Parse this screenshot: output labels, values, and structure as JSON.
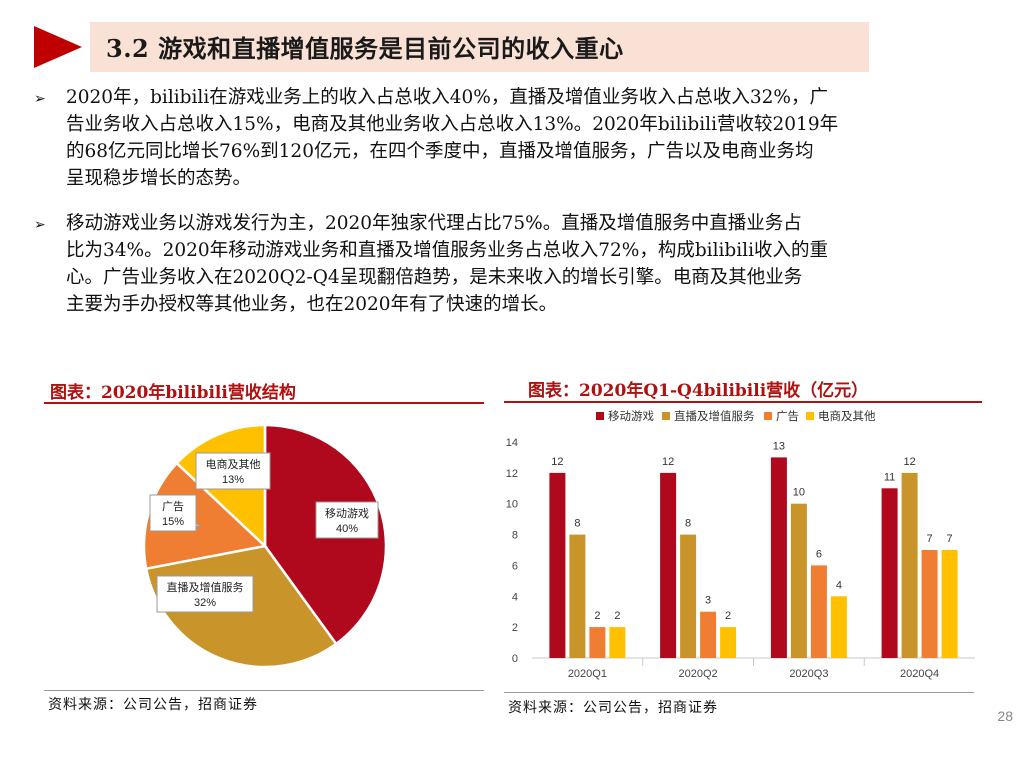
{
  "header": {
    "title": "3.2 游戏和直播增值服务是目前公司的收入重心"
  },
  "paragraphs": [
    {
      "bullet": "➢",
      "lines": [
        "2020年，bilibili在游戏业务上的收入占总收入40%，直播及增值业务收入占总收入32%，广",
        "告业务收入占总收入15%，电商及其他业务收入占总收入13%。2020年bilibili营收较2019年",
        "的68亿元同比增长76%到120亿元，在四个季度中，直播及增值服务，广告以及电商业务均",
        "呈现稳步增长的态势。"
      ]
    },
    {
      "bullet": "➢",
      "lines": [
        "移动游戏业务以游戏发行为主，2020年独家代理占比75%。直播及增值服务中直播业务占",
        "比为34%。2020年移动游戏业务和直播及增值服务业务占总收入72%，构成bilibili收入的重",
        "心。广告业务收入在2020Q2-Q4呈现翻倍趋势，是未来收入的增长引擎。电商及其他业务",
        "主要为手办授权等其他业务，也在2020年有了快速的增长。"
      ]
    }
  ],
  "chart_data": [
    {
      "type": "pie",
      "title": "图表：2020年bilibili营收结构",
      "categories": [
        "移动游戏",
        "直播及增值服务",
        "广告",
        "电商及其他"
      ],
      "values": [
        40,
        32,
        15,
        13
      ],
      "labels": [
        "40%",
        "32%",
        "15%",
        "13%"
      ],
      "colors": [
        "#b0081c",
        "#c9952a",
        "#ef7d32",
        "#ffc000"
      ],
      "source": "资料来源：公司公告，招商证券"
    },
    {
      "type": "bar",
      "title": "图表：2020年Q1-Q4bilibili营收（亿元）",
      "categories": [
        "2020Q1",
        "2020Q2",
        "2020Q3",
        "2020Q4"
      ],
      "series": [
        {
          "name": "移动游戏",
          "values": [
            12,
            12,
            13,
            11
          ],
          "color": "#b0081c"
        },
        {
          "name": "直播及增值服务",
          "values": [
            8,
            8,
            10,
            12
          ],
          "color": "#c9952a"
        },
        {
          "name": "广告",
          "values": [
            2,
            3,
            6,
            7
          ],
          "color": "#ef7d32"
        },
        {
          "name": "电商及其他",
          "values": [
            2,
            2,
            4,
            7
          ],
          "color": "#ffc000"
        }
      ],
      "ylim": [
        0,
        14
      ],
      "yticks": [
        0,
        2,
        4,
        6,
        8,
        10,
        12,
        14
      ],
      "legend": "top",
      "source": "资料来源：公司公告，招商证券"
    }
  ],
  "page_number": "28"
}
